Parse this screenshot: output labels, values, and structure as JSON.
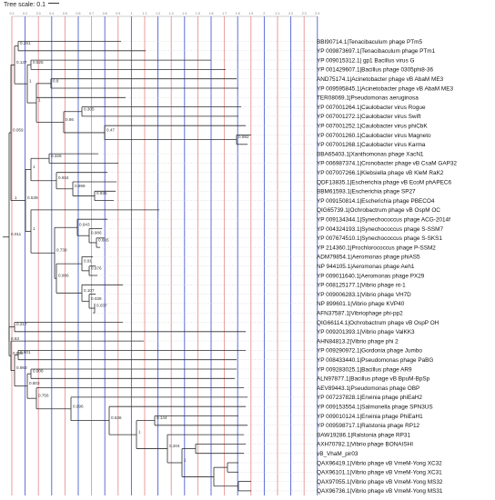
{
  "header": {
    "tree_scale_label": "Tree scale: 0.1"
  },
  "ticks": [
    "0.1",
    "0.2",
    "0.3",
    "0.4",
    "0.5",
    "0.6",
    "0.7",
    "0.8",
    "0.9",
    "1",
    "1.1",
    "1.2",
    "1.3",
    "1.4",
    "1.5",
    "1.6",
    "1.7",
    "1.8",
    "1.9",
    "2",
    "2.1",
    "2.2",
    "2.3",
    "2.4"
  ],
  "grid_colors": {
    "blue": "#2f45c8",
    "red": "#d23b3b"
  },
  "taxa": [
    "BBI90714.1|Tenacibaculum phage PTm5",
    "YP 009873697.1|Tenacibaculum phage PTm1",
    "YP 009015312.1| gp1 Bacillus virus G",
    "YP 001429607.1|Bacillus phage 0305phi8-36",
    "AND75174.1|Acinetobacter phage vB AbaM ME3",
    "YP 009595845.1|Acinetobacter phage vB AbaM ME3",
    "TER08069.1|Pseudomonas aeruginosa",
    "YP 007001264.1|Caulobacter virus Rogue",
    "YP 007001272.1|Caulobacter virus Swift",
    "YP 007001252.1|Caulobacter virus phiCbK",
    "YP 007001260.1|Caulobacter virus Magneto",
    "YP 007001268.1|Caulobacter virus Karma",
    "BBA65403.1|Xanthomonas phage XacN1",
    "YP 006987374.1|Cronobacter phage vB CsaM GAP32",
    "YP 007007266.1|Klebsiella phage vB KleM RaK2",
    "QDF13835.1|Escherichia phage vB EcoM phAPEC6",
    "BBM61593.1|Escherichia phage SP27",
    "YP 009150814.1|Escherichia phage PBECO4",
    "QIG65739.1|Ochrobactrum phage vB OspM OC",
    "YP 009134344.1|Synechococcus phage ACG-2014f",
    "YP 004324193.1|Synechococcus phage S-SSM7",
    "YP 007674510.1|Synechococcus phage S-SKS1",
    "YP 214360.1|Prochlorococcus phage P-SSM2",
    "ADM79854.1|Aeromonas phage phiAS5",
    "NP 944105.1|Aeromonas phage Aeh1",
    "YP 009011640.1|Aeromonas phage PX29",
    "YP 008125177.1|Vibrio phage nt-1",
    "YP 009006283.1|Vibrio phage VH7D",
    "NP 899601.1|Vibrio phage KVP40",
    "AFN37587.1|Vibriophage phi-pp2",
    "QIG66114.1|Ochrobactrum phage vB OspP OH",
    "YP 009201393.1|Vibrio phage ValKK3",
    "AHN84813.2|Vibrio phage phi 2",
    "YP 009290972.1|Gordonia phage Jumbo",
    "YP 008433440.1|Pseudomonas phage PaBG",
    "YP 009283025.1|Bacillus phage AR9",
    "ALN97877.1|Bacillus phage vB BpuM-BpSp",
    "AEV89443.1|Pseudomonas phage OBP",
    "YP 007237828.1|Erwinia phage phiEaH2",
    "YP 009153554.1|Salmonella phage SPN3US",
    "YP 009010124.1|Erwinia phage PhiEaH1",
    "YP 009598717.1|Ralstonia phage RP12",
    "BAW19286.1|Ralstonia phage RP31",
    "AXH70782.1|Vibrio phage BONAISHI",
    "vB_VhaM_pir03",
    "QAX96419.1|Vibrio phage vB VmeM-Yong XC32",
    "QAX96101.1|Vibrio phage vB VmeM-Yong XC31",
    "QAX97055.1|Vibrio phage vB VmeM-Yong MS32",
    "QAX96736.1|Vibrio phage vB VmeM-Yong MS31"
  ],
  "support_values": [
    "0.011",
    "0.059",
    "0.137",
    "0.281",
    "1",
    "0.525",
    "1",
    "0.8",
    "0.86",
    "0.305",
    "0.47",
    "0.992",
    "1",
    "0.539",
    "1",
    "0.326",
    "0.934",
    "0.999",
    "0.935",
    "1",
    "0.739",
    "0.943",
    "0.986",
    "0.665",
    "0.996",
    "0.91",
    "0.976",
    "0.107",
    "0.038",
    "0.037",
    "0.63",
    "0.217",
    "0.995",
    "0.983",
    "0.901",
    "0.803",
    "0.906",
    "0.756",
    "0.996",
    "0.536",
    "1",
    "0.144",
    "0.204",
    "1"
  ]
}
